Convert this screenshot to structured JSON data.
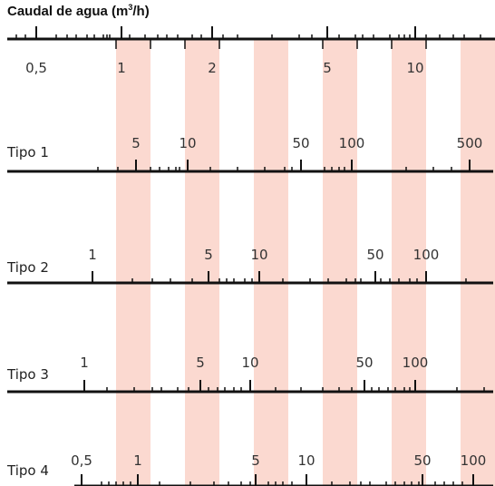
{
  "title": {
    "prefix": "Caudal de agua (m",
    "superscript": "3",
    "suffix": "/h)"
  },
  "colors": {
    "band": "#fbd9d0",
    "axis": "#111111",
    "text": "#333333"
  },
  "scales": [
    {
      "name": "",
      "labels": [
        "0,5",
        "1",
        "2",
        "5",
        "10"
      ],
      "label_values": [
        0.5,
        1,
        2,
        5,
        10
      ]
    },
    {
      "name": "Tipo 1",
      "labels": [
        "5",
        "10",
        "50",
        "100",
        "500"
      ],
      "label_values": [
        5,
        10,
        50,
        100,
        500
      ]
    },
    {
      "name": "Tipo 2",
      "labels": [
        "1",
        "5",
        "10",
        "50",
        "100"
      ],
      "label_values": [
        1,
        5,
        10,
        50,
        100
      ]
    },
    {
      "name": "Tipo 3",
      "labels": [
        "1",
        "5",
        "10",
        "50",
        "100"
      ],
      "label_values": [
        1,
        5,
        10,
        50,
        100
      ]
    },
    {
      "name": "Tipo 4",
      "labels": [
        "0,5",
        "1",
        "5",
        "10",
        "50",
        "100"
      ],
      "label_values": [
        0.5,
        1,
        5,
        10,
        50,
        100
      ]
    }
  ]
}
